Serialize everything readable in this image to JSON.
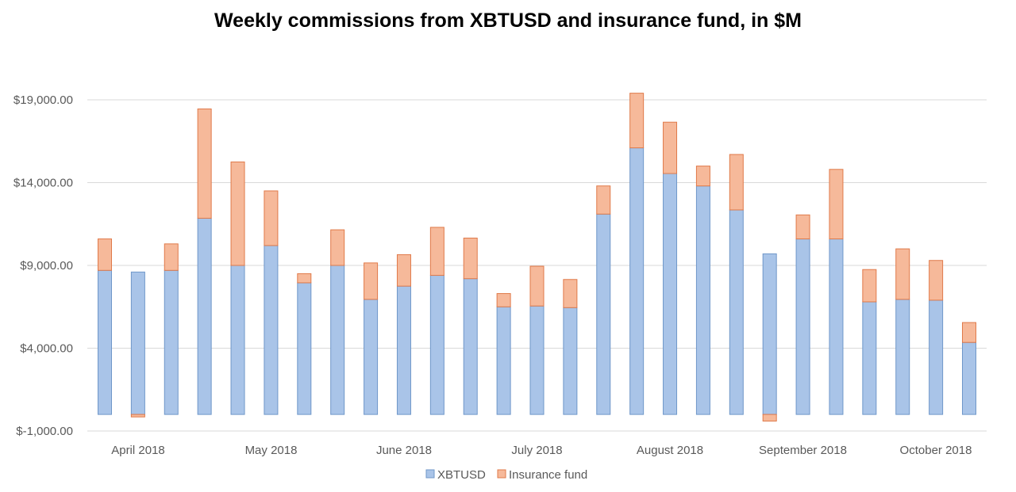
{
  "chart_data": {
    "type": "bar",
    "stacked": true,
    "title": "Weekly commissions from XBTUSD and insurance fund, in $M",
    "xlabel": "",
    "ylabel": "",
    "ylim": [
      -1000,
      19000
    ],
    "y_ticks": [
      -1000,
      4000,
      9000,
      14000,
      19000
    ],
    "y_tick_labels": [
      "$-1,000.00",
      "$4,000.00",
      "$9,000.00",
      "$14,000.00",
      "$19,000.00"
    ],
    "x_tick_labels": [
      "April 2018",
      "May 2018",
      "June 2018",
      "July 2018",
      "August 2018",
      "September 2018",
      "October 2018"
    ],
    "grid": true,
    "legend_position": "bottom",
    "colors": {
      "XBTUSD": "#a9c4e8",
      "XBTUSD_edge": "#6f97c9",
      "Insurance fund": "#f6b99a",
      "Insurance fund_edge": "#e07a4a",
      "grid": "#d9d9d9"
    },
    "series": [
      {
        "name": "XBTUSD",
        "values": [
          8700,
          8600,
          8700,
          11850,
          9000,
          10200,
          7950,
          9000,
          6950,
          7750,
          8400,
          8200,
          6500,
          6550,
          6450,
          12100,
          16100,
          14550,
          13800,
          12350,
          9700,
          10600,
          10600,
          6800,
          6950,
          6900,
          4350
        ]
      },
      {
        "name": "Insurance fund",
        "values": [
          1900,
          -150,
          1600,
          6600,
          6250,
          3300,
          550,
          2150,
          2200,
          1900,
          2900,
          2450,
          800,
          2400,
          1700,
          1700,
          3300,
          3100,
          1200,
          3350,
          -400,
          1450,
          4200,
          1950,
          3050,
          2400,
          1200
        ]
      }
    ]
  }
}
